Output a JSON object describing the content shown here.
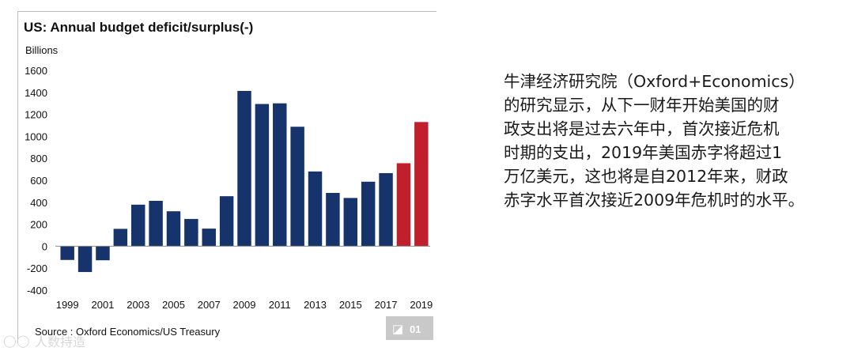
{
  "chart_data": {
    "type": "bar",
    "title": "US: Annual budget deficit/surplus(-)",
    "ylabel": "Billions",
    "ylim": [
      -400,
      1600
    ],
    "yticks": [
      -400,
      -200,
      0,
      200,
      400,
      600,
      800,
      1000,
      1200,
      1400,
      1600
    ],
    "categories": [
      "1999",
      "2000",
      "2001",
      "2002",
      "2003",
      "2004",
      "2005",
      "2006",
      "2007",
      "2008",
      "2009",
      "2010",
      "2011",
      "2012",
      "2013",
      "2014",
      "2015",
      "2016",
      "2017",
      "2018",
      "2019"
    ],
    "xtick_labels": [
      "1999",
      "2001",
      "2003",
      "2005",
      "2007",
      "2009",
      "2011",
      "2013",
      "2015",
      "2017",
      "2019"
    ],
    "values": [
      -125,
      -235,
      -128,
      158,
      378,
      413,
      318,
      248,
      160,
      455,
      1413,
      1294,
      1300,
      1087,
      680,
      485,
      439,
      587,
      665,
      755,
      1130
    ],
    "bar_colors": {
      "actual": "#16336b",
      "forecast": "#c0202b"
    },
    "forecast_categories": [
      "2018",
      "2019"
    ],
    "grid": false,
    "source": "Source : Oxford Economics/US Treasury",
    "badge": "01"
  },
  "watermark": "人数持造",
  "description_lines": [
    "牛津经济研究院（Oxford+Economics）",
    "的研究显示，从下一财年开始美国的财",
    "政支出将是过去六年中，首次接近危机",
    "时期的支出，2019年美国赤字将超过1",
    "万亿美元，这也将是自2012年来，财政",
    "赤字水平首次接近2009年危机时的水平。"
  ]
}
